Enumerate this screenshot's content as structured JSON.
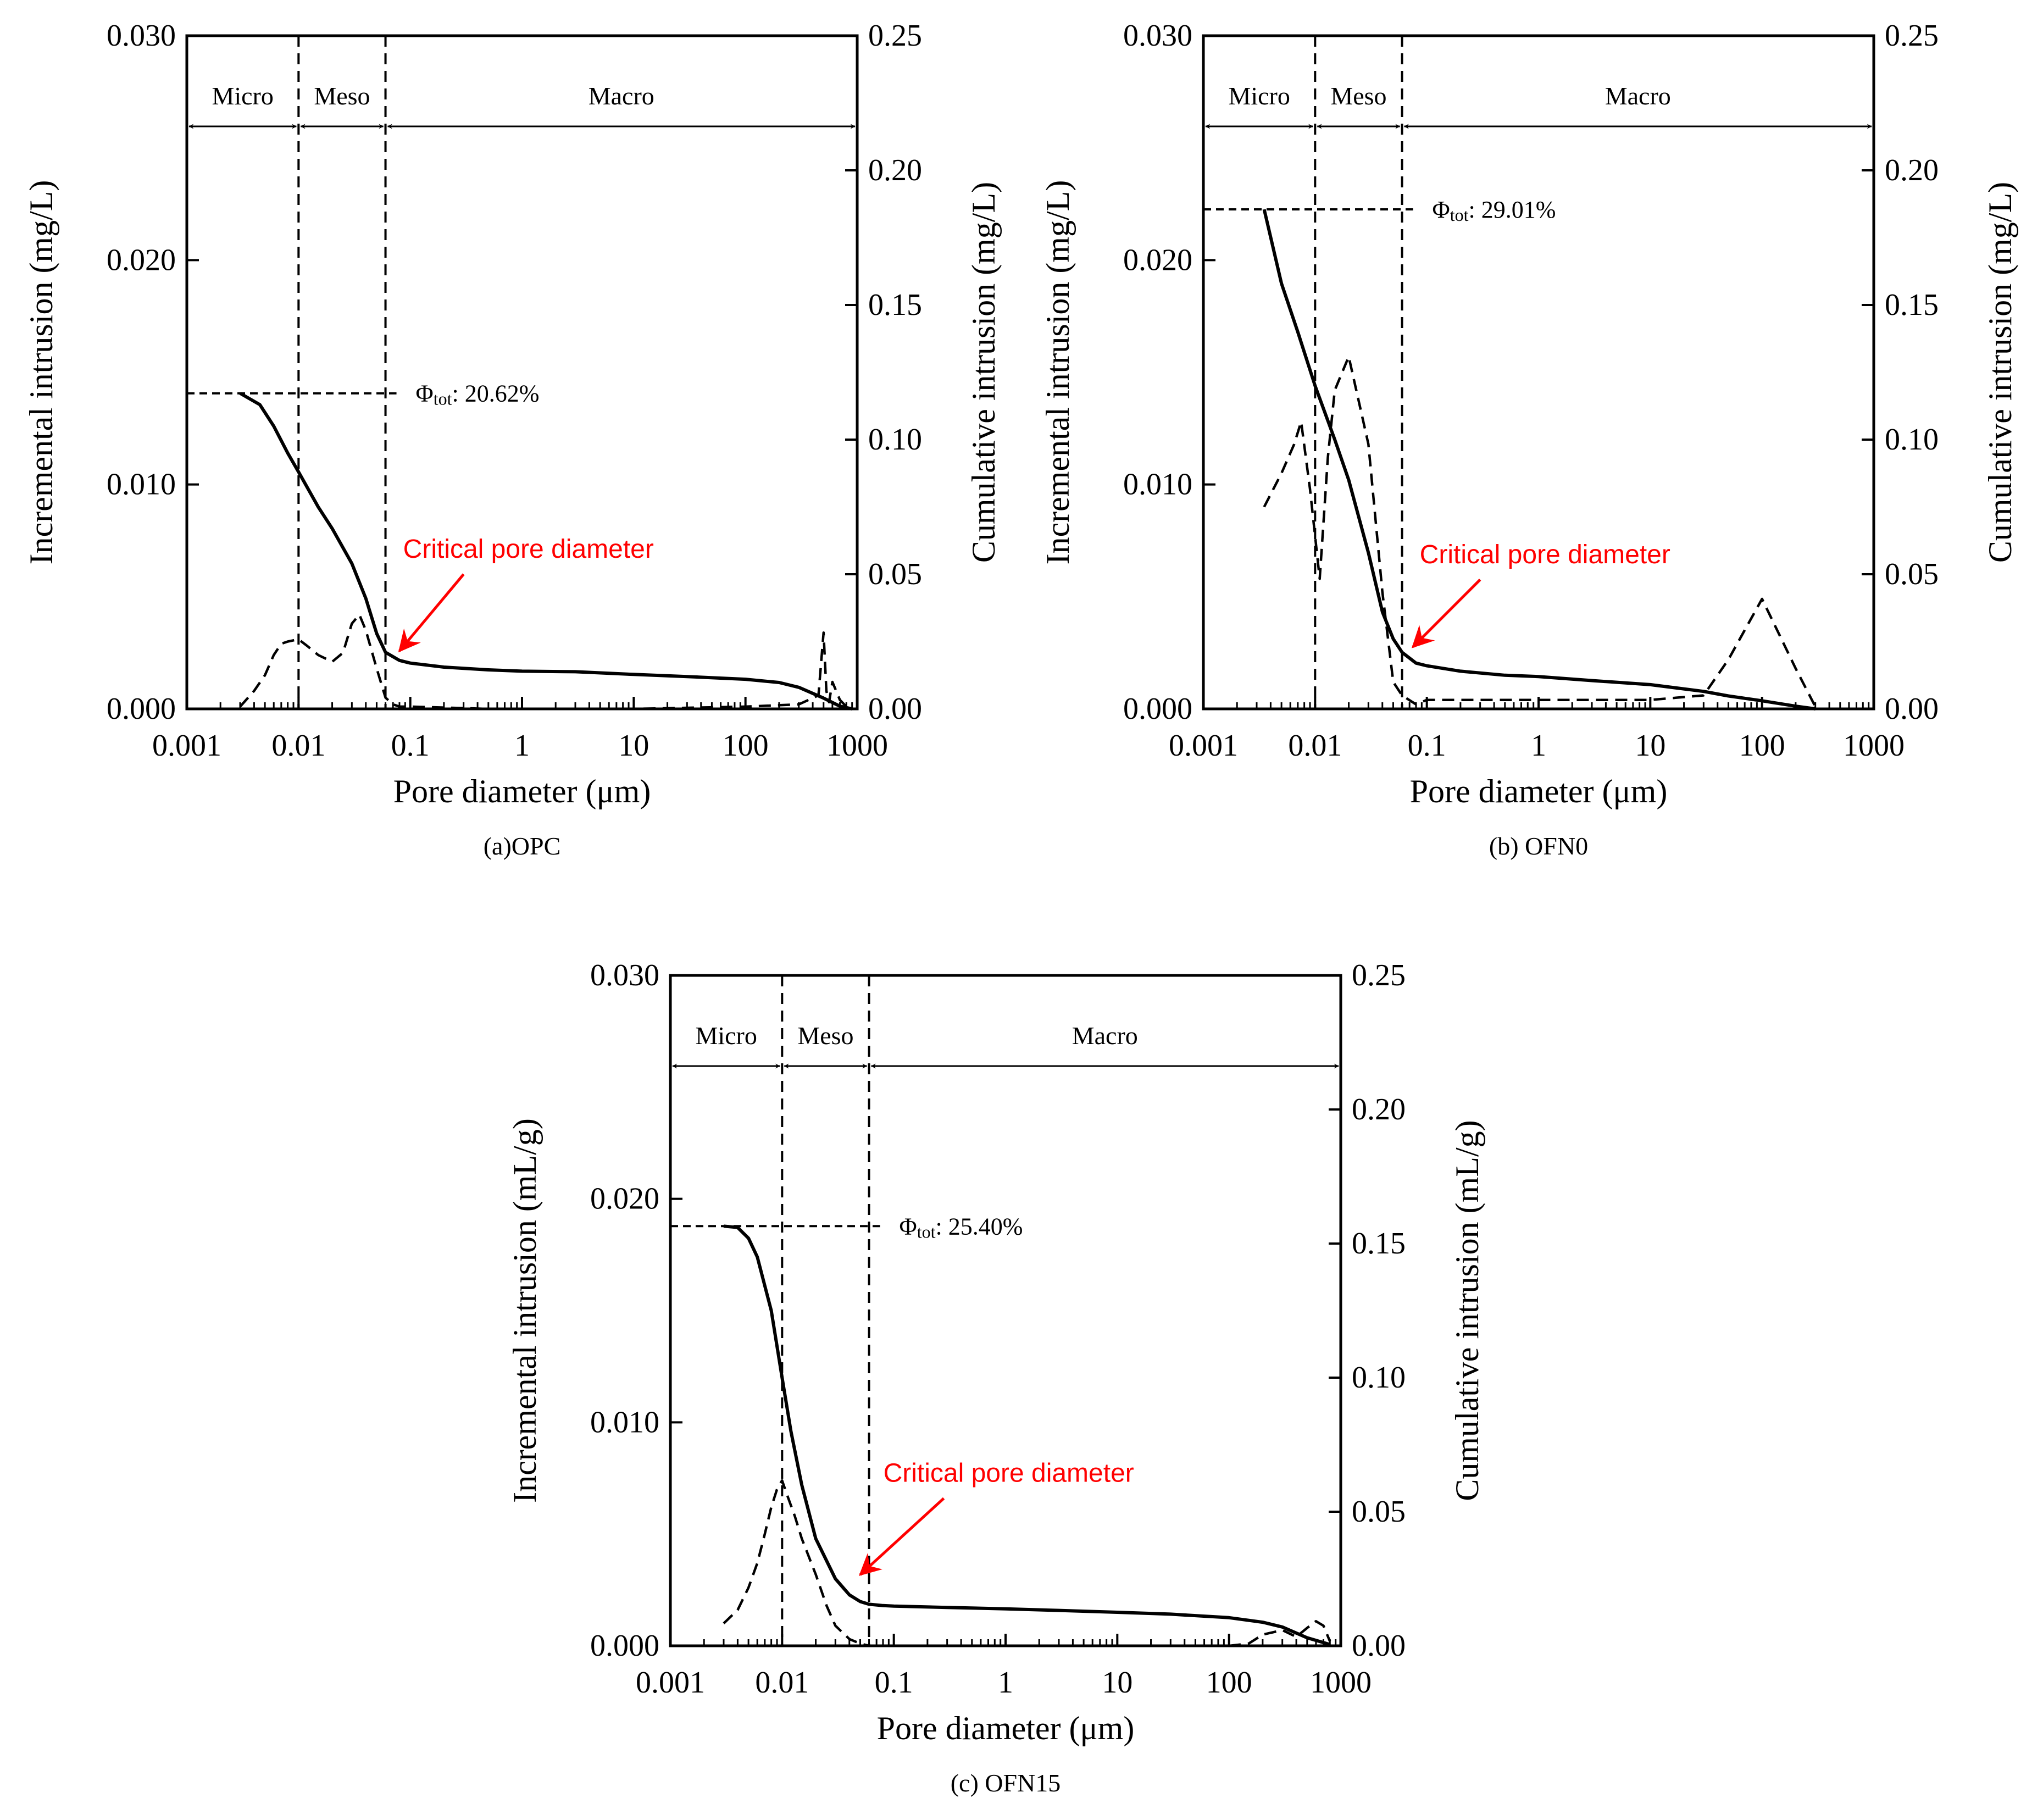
{
  "colors": {
    "axis": "#000000",
    "annotation": "#ff0000"
  },
  "chart_data": [
    {
      "type": "line",
      "caption": "(a)OPC",
      "xlabel": "Pore diameter (μm)",
      "ylabel_left": "Incremental   intrusion (mg/L)",
      "ylabel_right": "Cumulative intrusion (mg/L)",
      "x_scale": "log",
      "xlim": [
        0.001,
        1000
      ],
      "x_ticks": [
        "0.001",
        "0.01",
        "0.1",
        "1",
        "10",
        "100",
        "1000"
      ],
      "ylim_left": [
        0,
        0.03
      ],
      "y_ticks_left": [
        "0.000",
        "0.010",
        "0.020",
        "0.030"
      ],
      "ylim_right": [
        0,
        0.25
      ],
      "y_ticks_right": [
        "0.00",
        "0.05",
        "0.10",
        "0.15",
        "0.20",
        "0.25"
      ],
      "zones": {
        "labels": [
          "Micro",
          "Meso",
          "Macro"
        ],
        "boundaries": [
          0.01,
          0.06
        ]
      },
      "phi_label": {
        "symbol": "Φ",
        "sub": "tot",
        "value": ": 20.62%",
        "cumulative": 0.1172,
        "x_end": 0.06
      },
      "critical_label": "Critical pore diameter",
      "critical_arrow_from": [
        0.3,
        0.05
      ],
      "critical_arrow_to": [
        0.08,
        0.0215
      ],
      "series": [
        {
          "name": "Cumulative intrusion",
          "axis": "right",
          "style": "solid",
          "x": [
            0.003,
            0.0045,
            0.006,
            0.008,
            0.01,
            0.015,
            0.02,
            0.03,
            0.04,
            0.05,
            0.06,
            0.08,
            0.1,
            0.2,
            0.5,
            1,
            3,
            10,
            30,
            100,
            200,
            300,
            500,
            700,
            900
          ],
          "y": [
            0.1172,
            0.113,
            0.105,
            0.095,
            0.088,
            0.075,
            0.067,
            0.054,
            0.041,
            0.028,
            0.021,
            0.018,
            0.017,
            0.0155,
            0.0145,
            0.014,
            0.0138,
            0.0128,
            0.012,
            0.011,
            0.0098,
            0.008,
            0.004,
            0.001,
            0.0
          ]
        },
        {
          "name": "Incremental intrusion",
          "axis": "left",
          "style": "dashed",
          "x": [
            0.003,
            0.004,
            0.005,
            0.006,
            0.007,
            0.008,
            0.01,
            0.012,
            0.015,
            0.02,
            0.025,
            0.03,
            0.035,
            0.04,
            0.05,
            0.06,
            0.07,
            0.08,
            0.1,
            0.5,
            1,
            10,
            100,
            300,
            450,
            500,
            530,
            560,
            600,
            700,
            800
          ],
          "y": [
            0.0001,
            0.0008,
            0.0015,
            0.0024,
            0.0029,
            0.003,
            0.0031,
            0.0028,
            0.0024,
            0.0021,
            0.0025,
            0.0038,
            0.0042,
            0.0035,
            0.0018,
            0.0005,
            0.0002,
            0.0001,
            0.0001,
            0.0,
            0.0,
            0.0,
            0.0001,
            0.0002,
            0.0006,
            0.0034,
            0.0008,
            0.0003,
            0.0012,
            0.0004,
            0.0001
          ]
        }
      ]
    },
    {
      "type": "line",
      "caption": "(b) OFN0",
      "xlabel": "Pore diameter (μm)",
      "ylabel_left": "Incremental   intrusion (mg/L)",
      "ylabel_right": "Cumulative intrusion (mg/L)",
      "x_scale": "log",
      "xlim": [
        0.001,
        1000
      ],
      "x_ticks": [
        "0.001",
        "0.01",
        "0.1",
        "1",
        "10",
        "100",
        "1000"
      ],
      "ylim_left": [
        0,
        0.03
      ],
      "y_ticks_left": [
        "0.000",
        "0.010",
        "0.020",
        "0.030"
      ],
      "ylim_right": [
        0,
        0.25
      ],
      "y_ticks_right": [
        "0.00",
        "0.05",
        "0.10",
        "0.15",
        "0.20",
        "0.25"
      ],
      "zones": {
        "labels": [
          "Micro",
          "Meso",
          "Macro"
        ],
        "boundaries": [
          0.01,
          0.06
        ]
      },
      "phi_label": {
        "symbol": "Φ",
        "sub": "tot",
        "value": ": 29.01%",
        "cumulative": 0.1855,
        "x_end": 0.06
      },
      "critical_label": "Critical pore diameter",
      "critical_arrow_from": [
        0.3,
        0.048
      ],
      "critical_arrow_to": [
        0.075,
        0.023
      ],
      "series": [
        {
          "name": "Cumulative intrusion",
          "axis": "right",
          "style": "solid",
          "x": [
            0.0035,
            0.005,
            0.007,
            0.01,
            0.015,
            0.02,
            0.03,
            0.04,
            0.05,
            0.06,
            0.08,
            0.1,
            0.2,
            0.5,
            1,
            3,
            10,
            30,
            50,
            100,
            200,
            300
          ],
          "y": [
            0.1855,
            0.158,
            0.14,
            0.12,
            0.1,
            0.085,
            0.058,
            0.036,
            0.026,
            0.021,
            0.017,
            0.016,
            0.014,
            0.0125,
            0.012,
            0.0105,
            0.009,
            0.0065,
            0.0048,
            0.003,
            0.001,
            0.0
          ]
        },
        {
          "name": "Incremental intrusion",
          "axis": "left",
          "style": "dashed",
          "x": [
            0.0035,
            0.005,
            0.0065,
            0.0075,
            0.009,
            0.011,
            0.013,
            0.015,
            0.02,
            0.03,
            0.04,
            0.05,
            0.06,
            0.08,
            0.1,
            0.2,
            0.5,
            1,
            3,
            10,
            30,
            50,
            100,
            200,
            300
          ],
          "y": [
            0.009,
            0.0105,
            0.0118,
            0.0128,
            0.0098,
            0.0058,
            0.0112,
            0.0142,
            0.0157,
            0.0118,
            0.0052,
            0.0012,
            0.0006,
            0.0002,
            0.0004,
            0.0004,
            0.0004,
            0.0004,
            0.0004,
            0.0004,
            0.0006,
            0.0022,
            0.0049,
            0.0018,
            0.0001
          ]
        }
      ]
    },
    {
      "type": "line",
      "caption": "(c) OFN15",
      "xlabel": "Pore diameter (μm)",
      "ylabel_left": "Incremental   intrusion (mL/g)",
      "ylabel_right": "Cumulative intrusion (mL/g)",
      "x_scale": "log",
      "xlim": [
        0.001,
        1000
      ],
      "x_ticks": [
        "0.001",
        "0.01",
        "0.1",
        "1",
        "10",
        "100",
        "1000"
      ],
      "ylim_left": [
        0,
        0.03
      ],
      "y_ticks_left": [
        "0.000",
        "0.010",
        "0.020",
        "0.030"
      ],
      "ylim_right": [
        0,
        0.25
      ],
      "y_ticks_right": [
        "0.00",
        "0.05",
        "0.10",
        "0.15",
        "0.20",
        "0.25"
      ],
      "zones": {
        "labels": [
          "Micro",
          "Meso",
          "Macro"
        ],
        "boundaries": [
          0.01,
          0.06
        ]
      },
      "phi_label": {
        "symbol": "Φ",
        "sub": "tot",
        "value": ": 25.40%",
        "cumulative": 0.1565,
        "x_end": 0.06
      },
      "critical_label": "Critical pore diameter",
      "critical_arrow_from": [
        0.28,
        0.055
      ],
      "critical_arrow_to": [
        0.05,
        0.0265
      ],
      "series": [
        {
          "name": "Cumulative intrusion",
          "axis": "right",
          "style": "solid",
          "x": [
            0.003,
            0.004,
            0.005,
            0.006,
            0.008,
            0.01,
            0.012,
            0.015,
            0.02,
            0.03,
            0.04,
            0.05,
            0.06,
            0.08,
            0.1,
            0.3,
            1,
            3,
            10,
            30,
            100,
            200,
            300,
            500,
            800
          ],
          "y": [
            0.1565,
            0.156,
            0.152,
            0.145,
            0.125,
            0.1,
            0.08,
            0.06,
            0.04,
            0.025,
            0.019,
            0.0165,
            0.0155,
            0.015,
            0.0148,
            0.0143,
            0.0138,
            0.0132,
            0.0125,
            0.0118,
            0.0105,
            0.0088,
            0.007,
            0.003,
            0.0005
          ]
        },
        {
          "name": "Incremental intrusion",
          "axis": "left",
          "style": "dashed",
          "x": [
            0.003,
            0.004,
            0.005,
            0.006,
            0.007,
            0.008,
            0.009,
            0.01,
            0.011,
            0.013,
            0.015,
            0.02,
            0.025,
            0.03,
            0.04,
            0.05,
            0.06,
            0.1,
            1,
            10,
            100,
            150,
            200,
            300,
            400,
            500,
            600,
            700,
            800
          ],
          "y": [
            0.001,
            0.0016,
            0.0026,
            0.0037,
            0.005,
            0.0062,
            0.007,
            0.0074,
            0.0068,
            0.0058,
            0.0048,
            0.0032,
            0.0018,
            0.0009,
            0.0003,
            0.0001,
            0.0,
            0.0,
            0.0,
            0.0,
            0.0,
            0.0001,
            0.0005,
            0.0007,
            0.0004,
            0.0008,
            0.0011,
            0.0009,
            0.0002
          ]
        }
      ]
    }
  ]
}
